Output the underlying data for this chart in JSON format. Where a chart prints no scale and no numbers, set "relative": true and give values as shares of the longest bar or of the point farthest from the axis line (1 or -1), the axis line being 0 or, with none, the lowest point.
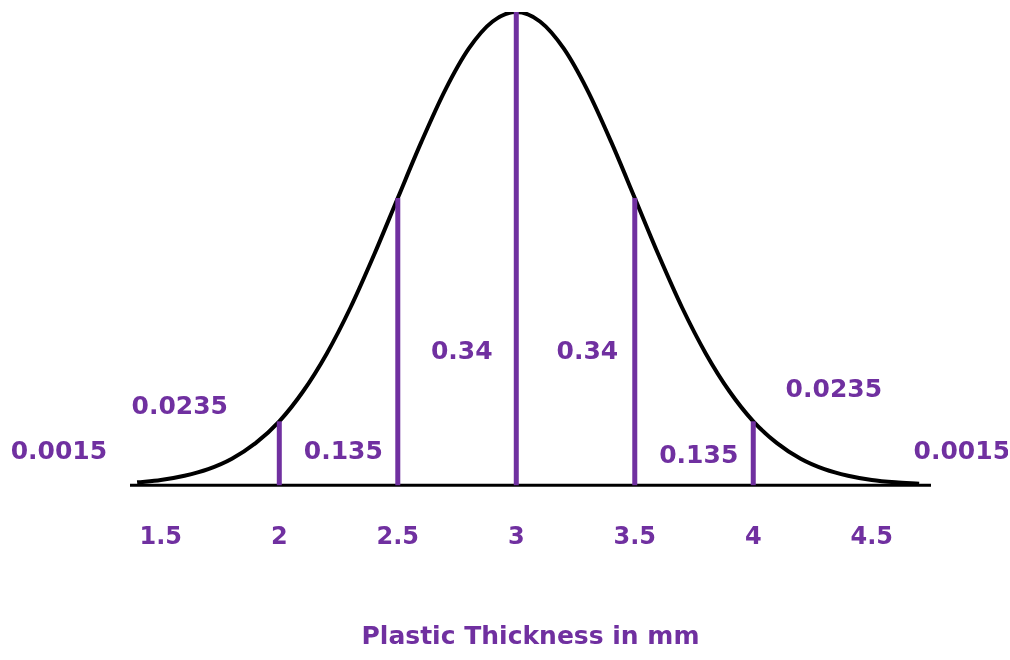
{
  "chart_data": {
    "type": "line",
    "relative": true,
    "xlabel": "Plastic Thickness in mm",
    "xlim": [
      1.37,
      4.75
    ],
    "xticks": [
      1.5,
      2,
      2.5,
      3,
      3.5,
      4,
      4.5
    ],
    "grid": false,
    "legend": false,
    "marker": "none",
    "line_style": "solid",
    "series": [
      {
        "color": "#000000",
        "x": [
          1.4,
          1.5,
          1.6,
          1.7,
          1.8,
          1.9,
          2.0,
          2.1,
          2.2,
          2.3,
          2.4,
          2.5,
          2.6,
          2.7,
          2.8,
          2.9,
          3.0,
          3.1,
          3.2,
          3.3,
          3.4,
          3.5,
          3.6,
          3.7,
          3.8,
          3.9,
          4.0,
          4.1,
          4.2,
          4.3,
          4.4,
          4.5,
          4.6,
          4.7
        ],
        "values": [
          0.006,
          0.011,
          0.02,
          0.034,
          0.056,
          0.089,
          0.135,
          0.198,
          0.278,
          0.375,
          0.487,
          0.607,
          0.726,
          0.835,
          0.923,
          0.98,
          1,
          0.98,
          0.923,
          0.835,
          0.726,
          0.607,
          0.487,
          0.375,
          0.278,
          0.198,
          0.135,
          0.089,
          0.056,
          0.034,
          0.02,
          0.011,
          0.006,
          0.003
        ]
      }
    ],
    "ref_lines": [
      {
        "axis": "x",
        "value": 2,
        "color": "#7030a0"
      },
      {
        "axis": "x",
        "value": 2.5,
        "color": "#7030a0"
      },
      {
        "axis": "x",
        "value": 3,
        "color": "#7030a0"
      },
      {
        "axis": "x",
        "value": 3.5,
        "color": "#7030a0"
      },
      {
        "axis": "x",
        "value": 4,
        "color": "#7030a0"
      }
    ],
    "annotations": [
      "0.0015",
      "0.0235",
      "0.135",
      "0.34",
      "0.34",
      "0.135",
      "0.0235",
      "0.0015"
    ]
  }
}
